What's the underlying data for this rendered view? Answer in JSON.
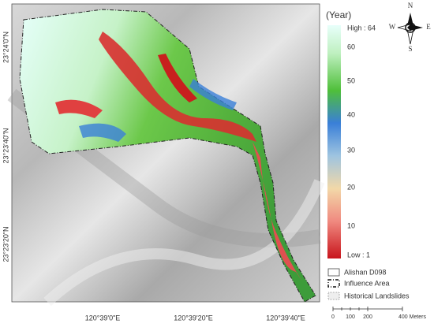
{
  "map": {
    "x_labels": [
      "120°39'0\"E",
      "120°39'20\"E",
      "120°39'40\"E"
    ],
    "y_labels": [
      "23°24'0\"N",
      "23°23'40\"N",
      "23°23'20\"N"
    ]
  },
  "legend": {
    "title": "(Year)",
    "high": "High : 64",
    "low": "Low : 1",
    "ticks": [
      "60",
      "50",
      "40",
      "30",
      "20",
      "10"
    ],
    "items": [
      "Alishan D098",
      "Influence Area",
      "Historical Landslides"
    ]
  },
  "compass": {
    "n": "N",
    "e": "E",
    "s": "S",
    "w": "W"
  },
  "scale_bar": {
    "labels": [
      "0",
      "100",
      "200",
      "400 Meters"
    ]
  }
}
